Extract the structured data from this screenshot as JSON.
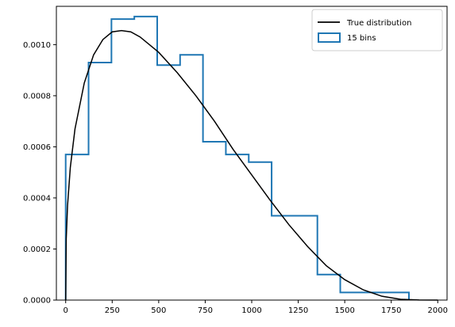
{
  "chart_data": {
    "type": "line",
    "title": "",
    "xlabel": "",
    "ylabel": "",
    "xlim": [
      -50,
      2050
    ],
    "ylim": [
      0,
      0.00115
    ],
    "x_ticks": [
      0,
      250,
      500,
      750,
      1000,
      1250,
      1500,
      1750,
      2000
    ],
    "x_tick_labels": [
      "0",
      "250",
      "500",
      "750",
      "1000",
      "1250",
      "1500",
      "1750",
      "2000"
    ],
    "y_ticks": [
      0,
      0.0002,
      0.0004,
      0.0006,
      0.0008,
      0.001
    ],
    "y_tick_labels": [
      "0.0000",
      "0.0002",
      "0.0004",
      "0.0006",
      "0.0008",
      "0.0010"
    ],
    "grid": false,
    "legend_position": "top-right",
    "series": [
      {
        "name": "True distribution",
        "kind": "line",
        "color": "#000000",
        "x": [
          0,
          3,
          10,
          25,
          50,
          100,
          150,
          200,
          250,
          300,
          350,
          400,
          500,
          600,
          700,
          800,
          900,
          1000,
          1100,
          1200,
          1300,
          1400,
          1500,
          1600,
          1700,
          1800,
          1900,
          2000
        ],
        "y": [
          0,
          0.00024,
          0.00037,
          0.00052,
          0.00067,
          0.00085,
          0.00096,
          0.00102,
          0.00105,
          0.001055,
          0.00105,
          0.00103,
          0.00097,
          0.00089,
          0.0008,
          0.0007,
          0.00059,
          0.00049,
          0.00039,
          0.000295,
          0.00021,
          0.000135,
          8e-05,
          4e-05,
          1.5e-05,
          3e-06,
          5e-07,
          0
        ]
      },
      {
        "name": "15 bins",
        "kind": "step-histogram",
        "color": "#1f77b4",
        "bin_edges": [
          0,
          123,
          246,
          369,
          492,
          615,
          738,
          861,
          984,
          1107,
          1230,
          1353,
          1476,
          1599,
          1722,
          1845
        ],
        "values": [
          0.00057,
          0.00093,
          0.0011,
          0.00111,
          0.00092,
          0.00096,
          0.00062,
          0.00057,
          0.00054,
          0.00033,
          0.00033,
          0.0001,
          3e-05,
          3e-05,
          3e-05
        ]
      }
    ]
  }
}
